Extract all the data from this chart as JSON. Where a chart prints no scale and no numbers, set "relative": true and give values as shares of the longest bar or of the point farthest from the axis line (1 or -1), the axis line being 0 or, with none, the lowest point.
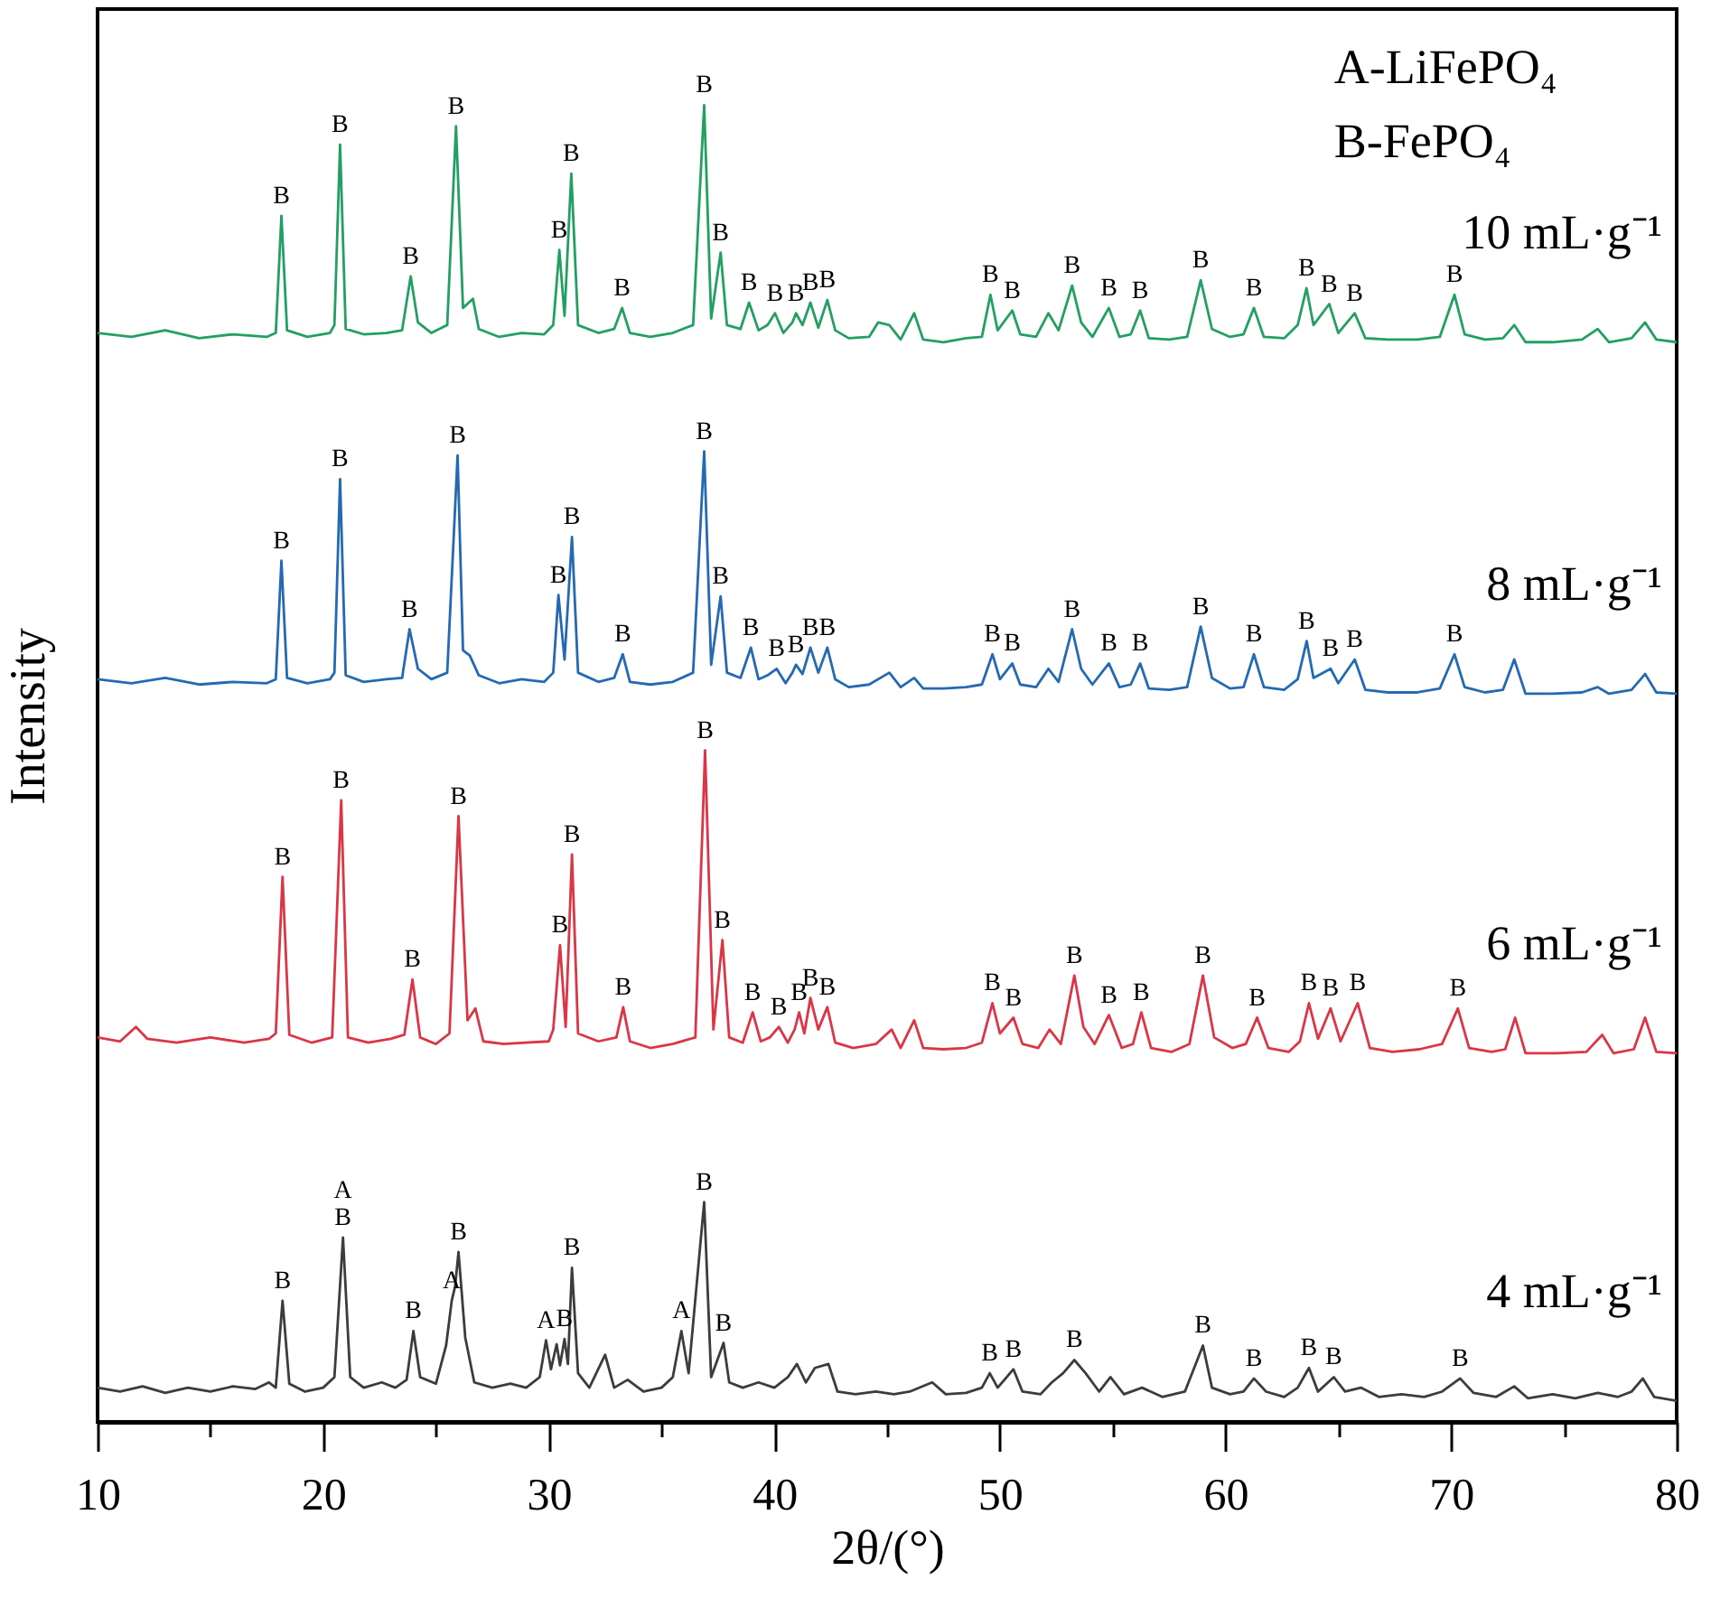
{
  "chart_data": {
    "type": "line",
    "relative": true,
    "xlabel": "2θ/(°)",
    "ylabel": "Intensity",
    "xlim": [
      10,
      80
    ],
    "xticks": [
      10,
      {
        "value": 15,
        "label": null
      },
      20,
      {
        "value": 25,
        "label": null
      },
      30,
      {
        "value": 35,
        "label": null
      },
      40,
      {
        "value": 45,
        "label": null
      },
      50,
      {
        "value": 55,
        "label": null
      },
      60,
      {
        "value": 65,
        "label": null
      },
      70,
      {
        "value": 75,
        "label": null
      },
      80
    ],
    "series": [
      {
        "name": "10 mL·g⁻¹",
        "color": "#22a062",
        "x": [
          10.0,
          11.5,
          13.0,
          14.5,
          16.0,
          17.5,
          17.9,
          18.15,
          18.4,
          19.3,
          20.3,
          20.5,
          20.75,
          21.0,
          21.8,
          22.8,
          23.5,
          23.88,
          24.2,
          24.8,
          25.5,
          25.89,
          26.2,
          26.64,
          26.9,
          27.8,
          28.8,
          29.8,
          30.2,
          30.47,
          30.7,
          31.0,
          31.3,
          32.2,
          32.9,
          33.25,
          33.6,
          34.5,
          35.5,
          36.4,
          36.89,
          37.2,
          37.62,
          37.9,
          38.5,
          38.88,
          39.3,
          39.7,
          40.03,
          40.4,
          40.8,
          40.96,
          41.25,
          41.6,
          41.95,
          42.35,
          42.7,
          43.3,
          44.2,
          44.6,
          45.1,
          45.6,
          46.2,
          46.6,
          47.5,
          48.5,
          49.2,
          49.58,
          49.9,
          50.55,
          50.9,
          51.6,
          52.15,
          52.6,
          53.2,
          53.6,
          54.1,
          54.83,
          55.3,
          55.8,
          56.22,
          56.6,
          57.5,
          58.3,
          58.9,
          59.4,
          60.2,
          60.8,
          61.26,
          61.7,
          62.6,
          63.2,
          63.59,
          63.9,
          64.6,
          65.0,
          65.73,
          66.2,
          67.2,
          68.5,
          69.5,
          70.15,
          70.6,
          71.5,
          72.3,
          72.8,
          73.3,
          74.5,
          75.8,
          76.5,
          77.0,
          78.0,
          78.6,
          79.1,
          80.0
        ],
        "values": [
          0.827,
          0.824,
          0.829,
          0.823,
          0.826,
          0.824,
          0.827,
          0.916,
          0.829,
          0.824,
          0.827,
          0.833,
          0.97,
          0.83,
          0.826,
          0.827,
          0.829,
          0.87,
          0.835,
          0.827,
          0.833,
          0.984,
          0.846,
          0.853,
          0.83,
          0.824,
          0.827,
          0.826,
          0.833,
          0.89,
          0.84,
          0.948,
          0.833,
          0.827,
          0.83,
          0.846,
          0.827,
          0.824,
          0.827,
          0.833,
          1.0,
          0.838,
          0.888,
          0.833,
          0.83,
          0.85,
          0.829,
          0.833,
          0.842,
          0.827,
          0.835,
          0.842,
          0.833,
          0.85,
          0.831,
          0.852,
          0.829,
          0.823,
          0.824,
          0.835,
          0.833,
          0.822,
          0.842,
          0.822,
          0.82,
          0.823,
          0.824,
          0.856,
          0.829,
          0.844,
          0.826,
          0.824,
          0.842,
          0.829,
          0.863,
          0.835,
          0.824,
          0.846,
          0.824,
          0.826,
          0.844,
          0.823,
          0.822,
          0.824,
          0.867,
          0.83,
          0.824,
          0.826,
          0.846,
          0.824,
          0.823,
          0.833,
          0.861,
          0.833,
          0.849,
          0.827,
          0.842,
          0.823,
          0.822,
          0.822,
          0.824,
          0.856,
          0.826,
          0.822,
          0.823,
          0.833,
          0.82,
          0.82,
          0.822,
          0.83,
          0.82,
          0.823,
          0.835,
          0.822,
          0.82
        ]
      },
      {
        "name": "8 mL·g⁻¹",
        "color": "#2369b4",
        "x": [
          10.0,
          11.5,
          13.0,
          14.5,
          16.0,
          17.5,
          17.9,
          18.15,
          18.4,
          19.3,
          20.3,
          20.5,
          20.75,
          21.0,
          21.8,
          22.8,
          23.5,
          23.83,
          24.2,
          24.8,
          25.5,
          25.96,
          26.2,
          26.5,
          26.9,
          27.8,
          28.8,
          29.8,
          30.2,
          30.43,
          30.7,
          31.03,
          31.3,
          32.2,
          32.9,
          33.28,
          33.6,
          34.5,
          35.5,
          36.4,
          36.89,
          37.2,
          37.62,
          37.9,
          38.5,
          38.96,
          39.3,
          39.7,
          40.1,
          40.5,
          40.8,
          40.96,
          41.25,
          41.6,
          41.95,
          42.35,
          42.7,
          43.3,
          44.2,
          45.1,
          45.6,
          46.2,
          46.6,
          47.5,
          48.5,
          49.2,
          49.67,
          50.0,
          50.55,
          50.9,
          51.6,
          52.15,
          52.6,
          53.2,
          53.6,
          54.1,
          54.83,
          55.3,
          55.8,
          56.22,
          56.6,
          57.5,
          58.3,
          58.9,
          59.4,
          60.2,
          60.8,
          61.26,
          61.7,
          62.6,
          63.2,
          63.6,
          63.9,
          64.66,
          65.0,
          65.73,
          66.2,
          67.2,
          68.5,
          69.5,
          70.15,
          70.6,
          71.5,
          72.3,
          72.8,
          73.3,
          74.5,
          75.8,
          76.5,
          77.0,
          78.0,
          78.6,
          79.1,
          80.0
        ],
        "values": [
          0.564,
          0.561,
          0.565,
          0.56,
          0.562,
          0.561,
          0.564,
          0.654,
          0.565,
          0.561,
          0.564,
          0.569,
          0.716,
          0.567,
          0.562,
          0.564,
          0.565,
          0.602,
          0.572,
          0.564,
          0.569,
          0.734,
          0.586,
          0.582,
          0.567,
          0.561,
          0.564,
          0.562,
          0.569,
          0.628,
          0.579,
          0.672,
          0.569,
          0.562,
          0.565,
          0.583,
          0.562,
          0.56,
          0.562,
          0.569,
          0.737,
          0.575,
          0.627,
          0.569,
          0.565,
          0.588,
          0.564,
          0.567,
          0.572,
          0.561,
          0.569,
          0.575,
          0.568,
          0.588,
          0.569,
          0.588,
          0.564,
          0.558,
          0.56,
          0.569,
          0.558,
          0.565,
          0.557,
          0.557,
          0.558,
          0.56,
          0.583,
          0.564,
          0.576,
          0.56,
          0.558,
          0.572,
          0.562,
          0.602,
          0.572,
          0.56,
          0.576,
          0.558,
          0.56,
          0.576,
          0.557,
          0.556,
          0.558,
          0.604,
          0.565,
          0.557,
          0.558,
          0.583,
          0.558,
          0.556,
          0.564,
          0.593,
          0.565,
          0.572,
          0.561,
          0.579,
          0.556,
          0.554,
          0.554,
          0.557,
          0.583,
          0.558,
          0.554,
          0.556,
          0.579,
          0.553,
          0.553,
          0.554,
          0.558,
          0.553,
          0.556,
          0.568,
          0.554,
          0.553
        ]
      },
      {
        "name": "6 mL·g⁻¹",
        "color": "#dc3545",
        "x": [
          10.0,
          11.0,
          11.7,
          12.2,
          13.5,
          15.0,
          16.5,
          17.6,
          17.9,
          18.2,
          18.5,
          19.5,
          20.4,
          20.8,
          21.1,
          22.0,
          23.0,
          23.6,
          23.96,
          24.3,
          25.0,
          25.6,
          26.0,
          26.4,
          26.75,
          27.1,
          28.0,
          29.0,
          30.0,
          30.2,
          30.5,
          30.75,
          31.03,
          31.3,
          32.2,
          33.0,
          33.3,
          33.6,
          34.5,
          35.5,
          36.5,
          36.93,
          37.3,
          37.7,
          38.0,
          38.6,
          39.04,
          39.4,
          39.8,
          40.2,
          40.6,
          40.9,
          41.1,
          41.33,
          41.6,
          41.95,
          42.35,
          42.7,
          43.5,
          44.5,
          45.2,
          45.6,
          46.2,
          46.6,
          47.5,
          48.5,
          49.2,
          49.67,
          50.0,
          50.6,
          51.0,
          51.7,
          52.2,
          52.7,
          53.3,
          53.7,
          54.2,
          54.83,
          55.4,
          55.9,
          56.27,
          56.7,
          57.6,
          58.4,
          59.0,
          59.5,
          60.3,
          60.9,
          61.4,
          61.9,
          62.8,
          63.3,
          63.7,
          64.1,
          64.66,
          65.1,
          65.86,
          66.4,
          67.4,
          68.6,
          69.6,
          70.3,
          70.8,
          71.8,
          72.4,
          72.84,
          73.3,
          74.7,
          76.0,
          76.7,
          77.2,
          78.1,
          78.6,
          79.1,
          80.0
        ],
        "values": [
          0.292,
          0.289,
          0.3,
          0.291,
          0.288,
          0.292,
          0.288,
          0.291,
          0.295,
          0.414,
          0.294,
          0.288,
          0.292,
          0.472,
          0.292,
          0.288,
          0.291,
          0.294,
          0.336,
          0.292,
          0.287,
          0.295,
          0.46,
          0.305,
          0.314,
          0.289,
          0.287,
          0.288,
          0.289,
          0.298,
          0.362,
          0.3,
          0.431,
          0.295,
          0.289,
          0.292,
          0.315,
          0.289,
          0.284,
          0.287,
          0.292,
          0.51,
          0.298,
          0.366,
          0.292,
          0.288,
          0.311,
          0.289,
          0.292,
          0.3,
          0.288,
          0.298,
          0.311,
          0.295,
          0.322,
          0.298,
          0.315,
          0.288,
          0.284,
          0.287,
          0.298,
          0.284,
          0.305,
          0.284,
          0.283,
          0.284,
          0.288,
          0.318,
          0.295,
          0.307,
          0.287,
          0.284,
          0.298,
          0.287,
          0.339,
          0.3,
          0.287,
          0.309,
          0.284,
          0.287,
          0.311,
          0.284,
          0.281,
          0.287,
          0.339,
          0.292,
          0.284,
          0.287,
          0.307,
          0.284,
          0.281,
          0.289,
          0.318,
          0.291,
          0.314,
          0.289,
          0.318,
          0.284,
          0.281,
          0.283,
          0.287,
          0.314,
          0.284,
          0.281,
          0.283,
          0.307,
          0.28,
          0.28,
          0.281,
          0.294,
          0.28,
          0.283,
          0.307,
          0.281,
          0.28
        ]
      },
      {
        "name": "4 mL·g⁻¹",
        "color": "#3c3c3c",
        "x": [
          10.0,
          11.0,
          12.0,
          13.0,
          14.0,
          15.0,
          16.0,
          17.0,
          17.6,
          17.9,
          18.2,
          18.5,
          19.2,
          20.0,
          20.5,
          20.88,
          21.2,
          21.8,
          22.6,
          23.2,
          23.7,
          24.0,
          24.3,
          25.0,
          25.45,
          25.7,
          25.85,
          26.0,
          26.3,
          26.7,
          27.5,
          28.3,
          29.0,
          29.6,
          29.88,
          30.1,
          30.35,
          30.5,
          30.7,
          30.85,
          31.03,
          31.3,
          31.8,
          32.5,
          32.9,
          33.5,
          34.2,
          35.0,
          35.5,
          35.88,
          36.2,
          36.89,
          37.2,
          37.75,
          38.0,
          38.6,
          39.3,
          40.0,
          40.6,
          41.0,
          41.4,
          41.8,
          42.4,
          42.8,
          43.6,
          44.5,
          45.3,
          46.0,
          47.0,
          47.6,
          48.5,
          49.2,
          49.55,
          49.9,
          50.6,
          51.0,
          51.8,
          52.3,
          52.8,
          53.3,
          53.8,
          54.4,
          54.9,
          55.5,
          56.3,
          57.2,
          58.2,
          59.0,
          59.4,
          60.2,
          60.8,
          61.26,
          61.8,
          62.6,
          63.2,
          63.7,
          64.1,
          64.8,
          65.3,
          66.0,
          66.8,
          67.8,
          68.8,
          69.6,
          70.4,
          71.0,
          72.0,
          72.8,
          73.4,
          74.5,
          75.5,
          76.5,
          77.4,
          78.0,
          78.5,
          79.0,
          80.0
        ],
        "values": [
          0.026,
          0.023,
          0.027,
          0.022,
          0.026,
          0.023,
          0.027,
          0.025,
          0.03,
          0.026,
          0.092,
          0.029,
          0.023,
          0.026,
          0.034,
          0.14,
          0.034,
          0.026,
          0.03,
          0.026,
          0.032,
          0.069,
          0.034,
          0.029,
          0.058,
          0.092,
          0.103,
          0.129,
          0.064,
          0.03,
          0.026,
          0.029,
          0.026,
          0.034,
          0.062,
          0.04,
          0.059,
          0.043,
          0.063,
          0.044,
          0.117,
          0.037,
          0.026,
          0.051,
          0.026,
          0.032,
          0.023,
          0.026,
          0.034,
          0.069,
          0.037,
          0.167,
          0.034,
          0.06,
          0.03,
          0.026,
          0.03,
          0.026,
          0.034,
          0.044,
          0.03,
          0.041,
          0.044,
          0.023,
          0.021,
          0.023,
          0.021,
          0.023,
          0.03,
          0.021,
          0.022,
          0.026,
          0.037,
          0.026,
          0.04,
          0.023,
          0.021,
          0.03,
          0.037,
          0.047,
          0.037,
          0.023,
          0.034,
          0.021,
          0.026,
          0.019,
          0.023,
          0.058,
          0.026,
          0.021,
          0.023,
          0.033,
          0.023,
          0.019,
          0.026,
          0.041,
          0.023,
          0.034,
          0.023,
          0.026,
          0.019,
          0.021,
          0.019,
          0.023,
          0.033,
          0.022,
          0.019,
          0.027,
          0.018,
          0.021,
          0.018,
          0.022,
          0.019,
          0.023,
          0.033,
          0.019,
          0.016
        ]
      }
    ],
    "annotations": [
      "A-LiFePO₄",
      "B-FePO₄",
      {
        "text": "B",
        "x": 18.15,
        "y": 0.916
      },
      {
        "text": "B",
        "x": 20.75,
        "y": 0.97
      },
      {
        "text": "B",
        "x": 23.88,
        "y": 0.87
      },
      {
        "text": "B",
        "x": 25.89,
        "y": 0.984
      },
      {
        "text": "B",
        "x": 30.47,
        "y": 0.89
      },
      {
        "text": "B",
        "x": 31.0,
        "y": 0.948
      },
      {
        "text": "B",
        "x": 33.25,
        "y": 0.846
      },
      {
        "text": "B",
        "x": 36.89,
        "y": 1.0
      },
      {
        "text": "B",
        "x": 37.62,
        "y": 0.888
      },
      {
        "text": "B",
        "x": 38.88,
        "y": 0.85
      },
      {
        "text": "B",
        "x": 40.03,
        "y": 0.842
      },
      {
        "text": "B",
        "x": 40.96,
        "y": 0.842
      },
      {
        "text": "B",
        "x": 41.6,
        "y": 0.85
      },
      {
        "text": "B",
        "x": 42.35,
        "y": 0.852
      },
      {
        "text": "B",
        "x": 49.58,
        "y": 0.856
      },
      {
        "text": "B",
        "x": 50.55,
        "y": 0.844
      },
      {
        "text": "B",
        "x": 53.2,
        "y": 0.863
      },
      {
        "text": "B",
        "x": 54.83,
        "y": 0.846
      },
      {
        "text": "B",
        "x": 56.22,
        "y": 0.844
      },
      {
        "text": "B",
        "x": 58.9,
        "y": 0.867
      },
      {
        "text": "B",
        "x": 61.26,
        "y": 0.846
      },
      {
        "text": "B",
        "x": 63.59,
        "y": 0.861
      },
      {
        "text": "B",
        "x": 64.6,
        "y": 0.849
      },
      {
        "text": "B",
        "x": 65.73,
        "y": 0.842
      },
      {
        "text": "B",
        "x": 70.15,
        "y": 0.856
      },
      {
        "text": "B",
        "x": 18.15,
        "y": 0.654
      },
      {
        "text": "B",
        "x": 20.75,
        "y": 0.716
      },
      {
        "text": "B",
        "x": 23.83,
        "y": 0.602
      },
      {
        "text": "B",
        "x": 25.96,
        "y": 0.734
      },
      {
        "text": "B",
        "x": 30.43,
        "y": 0.628
      },
      {
        "text": "B",
        "x": 31.03,
        "y": 0.672
      },
      {
        "text": "B",
        "x": 33.28,
        "y": 0.583
      },
      {
        "text": "B",
        "x": 36.89,
        "y": 0.737
      },
      {
        "text": "B",
        "x": 37.62,
        "y": 0.627
      },
      {
        "text": "B",
        "x": 38.96,
        "y": 0.588
      },
      {
        "text": "B",
        "x": 40.1,
        "y": 0.572
      },
      {
        "text": "B",
        "x": 40.96,
        "y": 0.575
      },
      {
        "text": "B",
        "x": 41.6,
        "y": 0.588
      },
      {
        "text": "B",
        "x": 42.35,
        "y": 0.588
      },
      {
        "text": "B",
        "x": 49.67,
        "y": 0.583
      },
      {
        "text": "B",
        "x": 50.55,
        "y": 0.576
      },
      {
        "text": "B",
        "x": 53.2,
        "y": 0.602
      },
      {
        "text": "B",
        "x": 54.83,
        "y": 0.576
      },
      {
        "text": "B",
        "x": 56.22,
        "y": 0.576
      },
      {
        "text": "B",
        "x": 58.9,
        "y": 0.604
      },
      {
        "text": "B",
        "x": 61.26,
        "y": 0.583
      },
      {
        "text": "B",
        "x": 63.6,
        "y": 0.593
      },
      {
        "text": "B",
        "x": 64.66,
        "y": 0.572
      },
      {
        "text": "B",
        "x": 65.73,
        "y": 0.579
      },
      {
        "text": "B",
        "x": 70.15,
        "y": 0.583
      },
      {
        "text": "B",
        "x": 18.2,
        "y": 0.414
      },
      {
        "text": "B",
        "x": 20.8,
        "y": 0.472
      },
      {
        "text": "B",
        "x": 23.96,
        "y": 0.336
      },
      {
        "text": "B",
        "x": 26.0,
        "y": 0.46
      },
      {
        "text": "B",
        "x": 30.5,
        "y": 0.362
      },
      {
        "text": "B",
        "x": 31.03,
        "y": 0.431
      },
      {
        "text": "B",
        "x": 33.3,
        "y": 0.315
      },
      {
        "text": "B",
        "x": 36.93,
        "y": 0.51
      },
      {
        "text": "B",
        "x": 37.7,
        "y": 0.366
      },
      {
        "text": "B",
        "x": 39.04,
        "y": 0.311
      },
      {
        "text": "B",
        "x": 40.2,
        "y": 0.3
      },
      {
        "text": "B",
        "x": 41.1,
        "y": 0.311
      },
      {
        "text": "B",
        "x": 41.6,
        "y": 0.322
      },
      {
        "text": "B",
        "x": 42.35,
        "y": 0.315
      },
      {
        "text": "B",
        "x": 49.67,
        "y": 0.318
      },
      {
        "text": "B",
        "x": 50.6,
        "y": 0.307
      },
      {
        "text": "B",
        "x": 53.3,
        "y": 0.339
      },
      {
        "text": "B",
        "x": 54.83,
        "y": 0.309
      },
      {
        "text": "B",
        "x": 56.27,
        "y": 0.311
      },
      {
        "text": "B",
        "x": 59.0,
        "y": 0.339
      },
      {
        "text": "B",
        "x": 61.4,
        "y": 0.307
      },
      {
        "text": "B",
        "x": 63.7,
        "y": 0.318
      },
      {
        "text": "B",
        "x": 64.66,
        "y": 0.314
      },
      {
        "text": "B",
        "x": 65.86,
        "y": 0.318
      },
      {
        "text": "B",
        "x": 70.3,
        "y": 0.314
      },
      {
        "text": "B",
        "x": 18.2,
        "y": 0.092
      },
      {
        "text": "B",
        "x": 20.88,
        "y": 0.14
      },
      {
        "text": "A",
        "x": 20.88,
        "y": 0.14
      },
      {
        "text": "B",
        "x": 24.0,
        "y": 0.069
      },
      {
        "text": "A",
        "x": 25.7,
        "y": 0.092
      },
      {
        "text": "B",
        "x": 26.0,
        "y": 0.129
      },
      {
        "text": "A",
        "x": 29.88,
        "y": 0.062
      },
      {
        "text": "B",
        "x": 30.7,
        "y": 0.063
      },
      {
        "text": "B",
        "x": 31.03,
        "y": 0.117
      },
      {
        "text": "A",
        "x": 35.88,
        "y": 0.069
      },
      {
        "text": "B",
        "x": 36.89,
        "y": 0.167
      },
      {
        "text": "B",
        "x": 37.75,
        "y": 0.06
      },
      {
        "text": "B",
        "x": 49.55,
        "y": 0.037
      },
      {
        "text": "B",
        "x": 50.6,
        "y": 0.04
      },
      {
        "text": "B",
        "x": 53.3,
        "y": 0.047
      },
      {
        "text": "B",
        "x": 59.0,
        "y": 0.058
      },
      {
        "text": "B",
        "x": 61.26,
        "y": 0.033
      },
      {
        "text": "B",
        "x": 63.7,
        "y": 0.041
      },
      {
        "text": "B",
        "x": 64.8,
        "y": 0.034
      },
      {
        "text": "B",
        "x": 70.4,
        "y": 0.033
      }
    ]
  }
}
